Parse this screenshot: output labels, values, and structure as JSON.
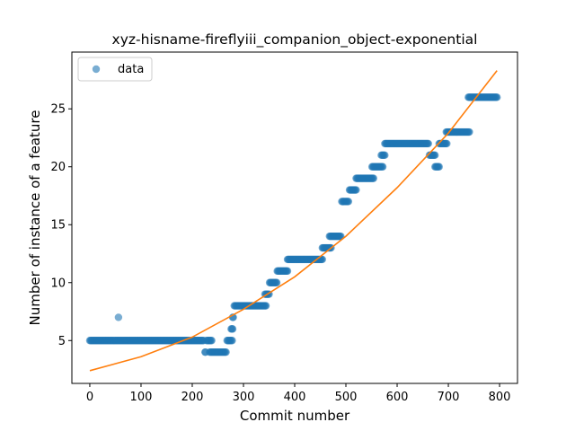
{
  "chart_data": {
    "type": "scatter",
    "title": "xyz-hisname-fireflyiii_companion_object-exponential",
    "xlabel": "Commit number",
    "ylabel": "Number of instance of a feature",
    "xlim": [
      -35,
      835
    ],
    "ylim": [
      1.3,
      29.9
    ],
    "xticks": [
      0,
      100,
      200,
      300,
      400,
      500,
      600,
      700,
      800
    ],
    "yticks": [
      5,
      10,
      15,
      20,
      25
    ],
    "legend": {
      "position": "top-left",
      "entries": [
        "data"
      ]
    },
    "colors": {
      "scatter": "#1f77b4",
      "fit": "#ff7f0e"
    },
    "series": [
      {
        "name": "data",
        "kind": "scatter",
        "segments": [
          {
            "x_start": 0,
            "x_end": 222,
            "y": 5
          },
          {
            "x_start": 56,
            "x_end": 56,
            "y": 7
          },
          {
            "x_start": 225,
            "x_end": 226,
            "y": 4
          },
          {
            "x_start": 228,
            "x_end": 238,
            "y": 5
          },
          {
            "x_start": 234,
            "x_end": 266,
            "y": 4
          },
          {
            "x_start": 268,
            "x_end": 278,
            "y": 5
          },
          {
            "x_start": 276,
            "x_end": 279,
            "y": 6
          },
          {
            "x_start": 279,
            "x_end": 280,
            "y": 7
          },
          {
            "x_start": 282,
            "x_end": 344,
            "y": 8
          },
          {
            "x_start": 342,
            "x_end": 350,
            "y": 9
          },
          {
            "x_start": 351,
            "x_end": 365,
            "y": 10
          },
          {
            "x_start": 366,
            "x_end": 386,
            "y": 11
          },
          {
            "x_start": 386,
            "x_end": 454,
            "y": 12
          },
          {
            "x_start": 454,
            "x_end": 471,
            "y": 13
          },
          {
            "x_start": 468,
            "x_end": 490,
            "y": 14
          },
          {
            "x_start": 492,
            "x_end": 505,
            "y": 17
          },
          {
            "x_start": 507,
            "x_end": 520,
            "y": 18
          },
          {
            "x_start": 520,
            "x_end": 554,
            "y": 19
          },
          {
            "x_start": 551,
            "x_end": 572,
            "y": 20
          },
          {
            "x_start": 569,
            "x_end": 576,
            "y": 21
          },
          {
            "x_start": 576,
            "x_end": 661,
            "y": 22
          },
          {
            "x_start": 663,
            "x_end": 674,
            "y": 21
          },
          {
            "x_start": 674,
            "x_end": 682,
            "y": 20
          },
          {
            "x_start": 682,
            "x_end": 697,
            "y": 22
          },
          {
            "x_start": 696,
            "x_end": 741,
            "y": 23
          },
          {
            "x_start": 739,
            "x_end": 795,
            "y": 26
          }
        ]
      },
      {
        "name": "",
        "kind": "line",
        "x": [
          0,
          100,
          200,
          300,
          400,
          500,
          600,
          700,
          795
        ],
        "y": [
          2.4,
          3.6,
          5.3,
          7.7,
          10.5,
          14.0,
          18.2,
          22.9,
          28.3
        ]
      }
    ]
  }
}
